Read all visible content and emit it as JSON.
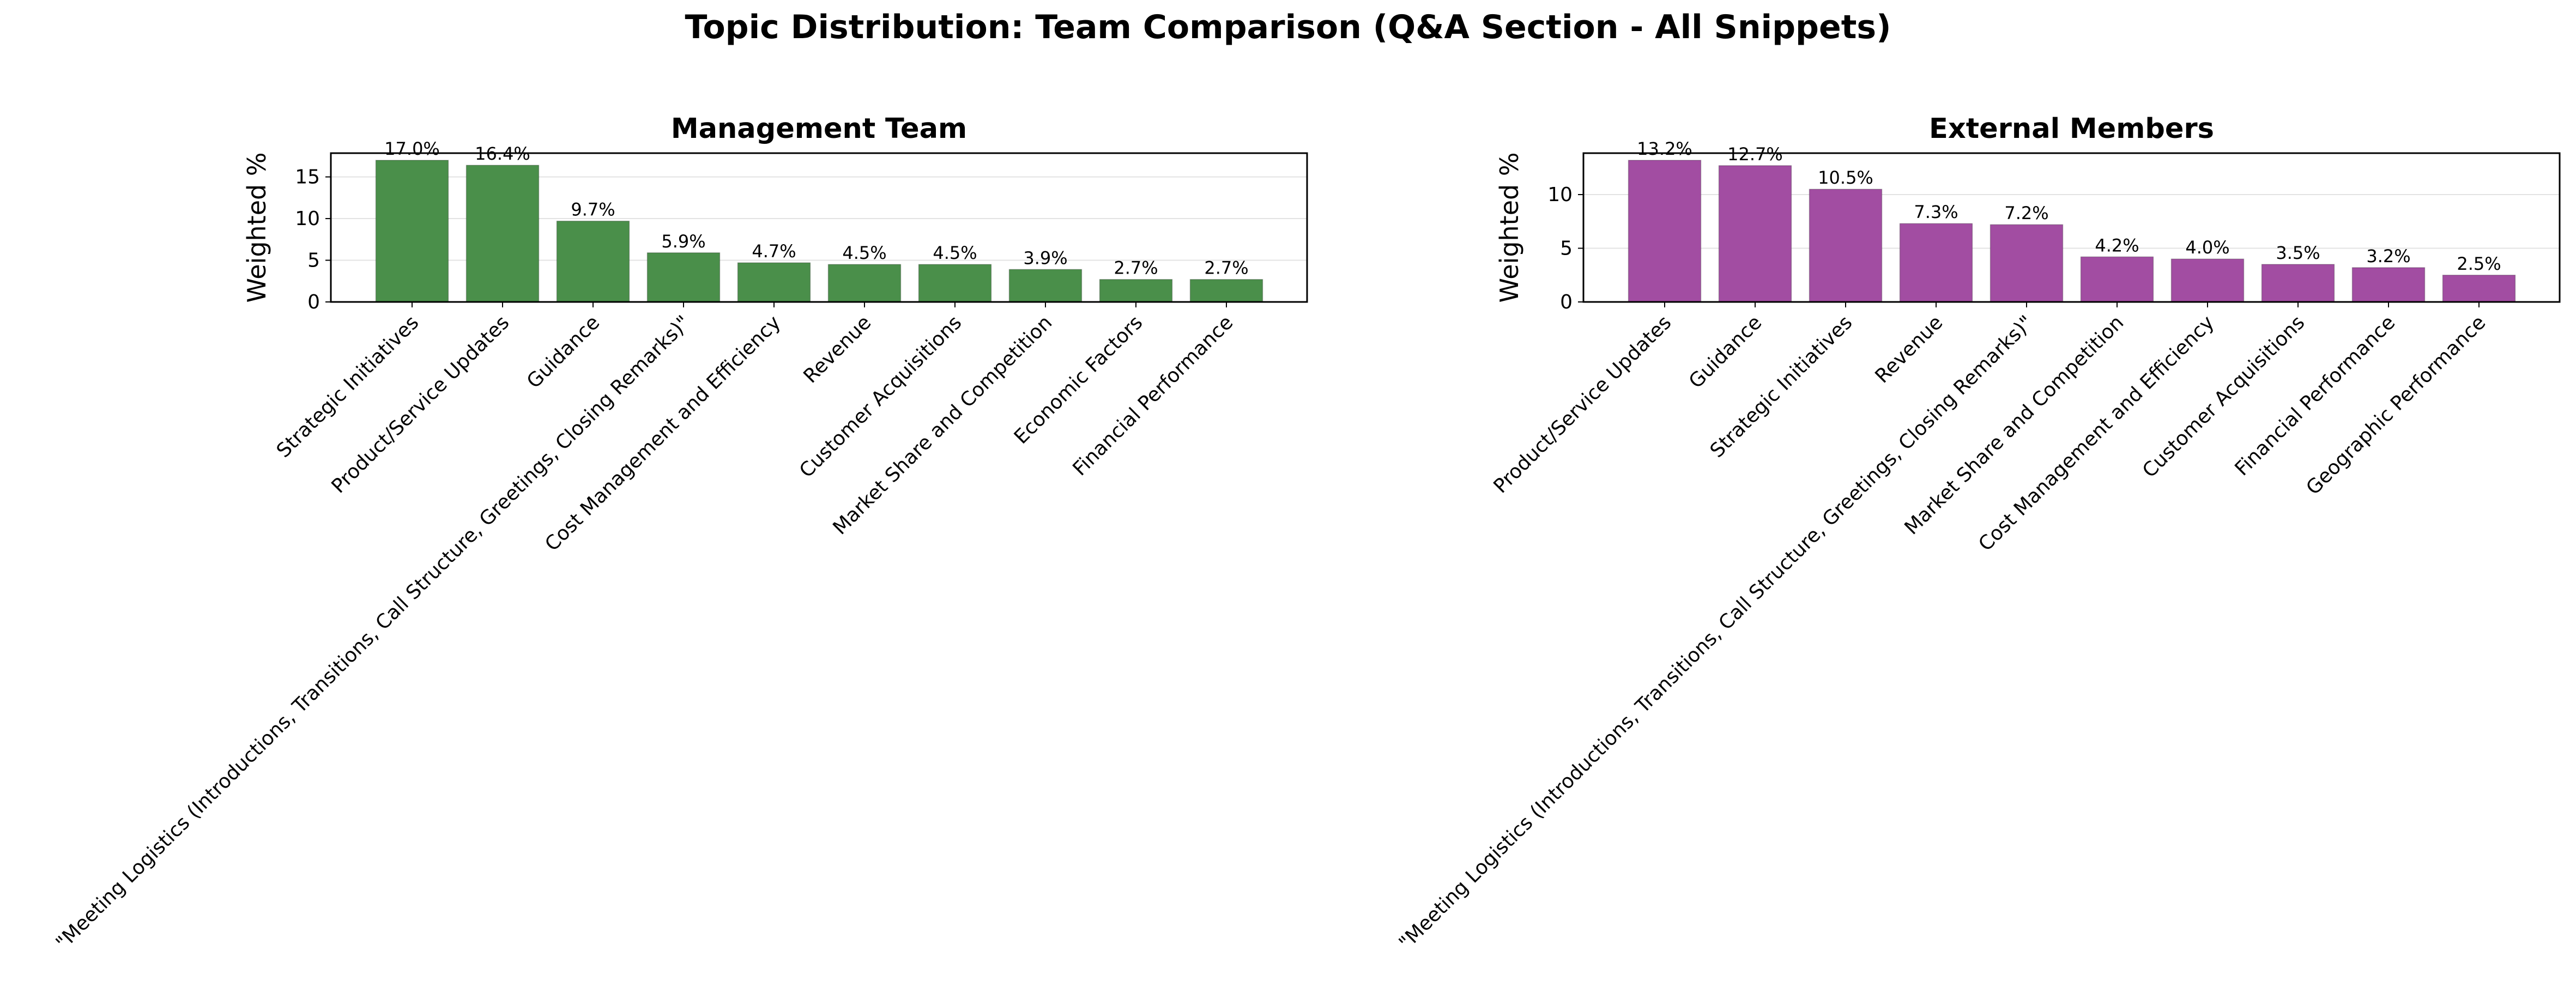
{
  "figure": {
    "title": "Topic Distribution: Team Comparison (Q&A Section - All Snippets)"
  },
  "chart_data": [
    {
      "type": "bar",
      "title": "Management Team",
      "xlabel": "",
      "ylabel": "Weighted %",
      "ylim": [
        0,
        17.85
      ],
      "yticks": [
        0,
        5,
        10,
        15
      ],
      "grid": "horizontal",
      "color": "#4a8f4a",
      "categories": [
        "Strategic Initiatives",
        "Product/Service Updates",
        "Guidance",
        "\"Meeting Logistics (Introductions, Transitions, Call Structure, Greetings, Closing Remarks)\"",
        "Cost Management and Efficiency",
        "Revenue",
        "Customer Acquisitions",
        "Market Share and Competition",
        "Economic Factors",
        "Financial Performance"
      ],
      "values": [
        17.0,
        16.4,
        9.7,
        5.9,
        4.7,
        4.5,
        4.5,
        3.9,
        2.7,
        2.7
      ],
      "labels": [
        "17.0%",
        "16.4%",
        "9.7%",
        "5.9%",
        "4.7%",
        "4.5%",
        "4.5%",
        "3.9%",
        "2.7%",
        "2.7%"
      ]
    },
    {
      "type": "bar",
      "title": "External Members",
      "xlabel": "",
      "ylabel": "Weighted %",
      "ylim": [
        0,
        13.86
      ],
      "yticks": [
        0,
        5,
        10
      ],
      "grid": "horizontal",
      "color": "#a24da2",
      "categories": [
        "Product/Service Updates",
        "Guidance",
        "Strategic Initiatives",
        "Revenue",
        "\"Meeting Logistics (Introductions, Transitions, Call Structure, Greetings, Closing Remarks)\"",
        "Market Share and Competition",
        "Cost Management and Efficiency",
        "Customer Acquisitions",
        "Financial Performance",
        "Geographic Performance"
      ],
      "values": [
        13.2,
        12.7,
        10.5,
        7.3,
        7.2,
        4.2,
        4.0,
        3.5,
        3.2,
        2.5
      ],
      "labels": [
        "13.2%",
        "12.7%",
        "10.5%",
        "7.3%",
        "7.2%",
        "4.2%",
        "4.0%",
        "3.5%",
        "3.2%",
        "2.5%"
      ]
    }
  ]
}
